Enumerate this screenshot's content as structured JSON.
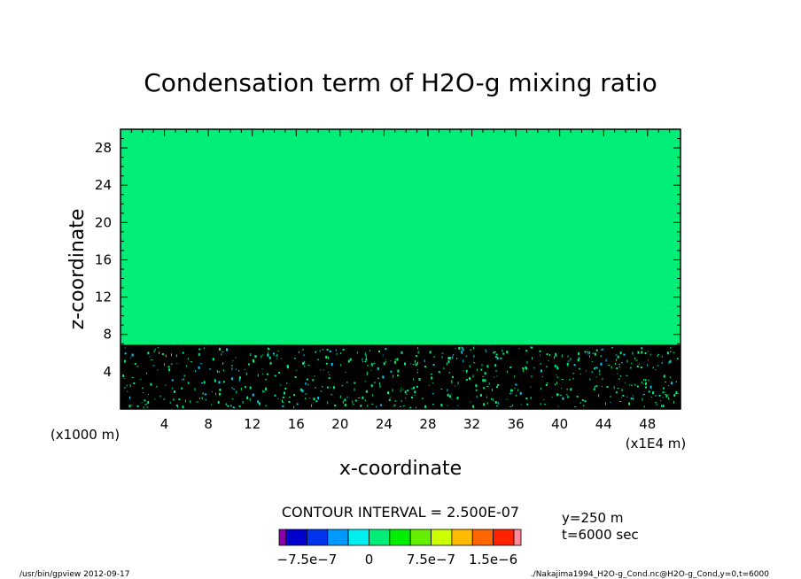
{
  "chart_data": {
    "type": "heatmap",
    "title": "Condensation term of H2O-g mixing ratio",
    "xlabel": "x-coordinate",
    "ylabel": "z-coordinate",
    "x_unit_note": "(x1E4 m)",
    "y_unit_note": "(x1000 m)",
    "xlim": [
      0,
      51
    ],
    "ylim": [
      0,
      30
    ],
    "x_ticks": [
      4,
      8,
      12,
      16,
      20,
      24,
      28,
      32,
      36,
      40,
      44,
      48
    ],
    "y_ticks": [
      4,
      8,
      12,
      16,
      20,
      24,
      28
    ],
    "field": {
      "upper_region": {
        "z_range": [
          6.9,
          30
        ],
        "value_class": "0 to 2.5e-7",
        "color": "#00ee78"
      },
      "lower_region": {
        "z_range": [
          0,
          6.9
        ],
        "value_class": "below -7.5e-7 (dominant)",
        "color": "#000000",
        "speckle_colors": [
          "#00ee78",
          "#00ccff"
        ]
      }
    },
    "contour_interval": "CONTOUR INTERVAL = 2.500E-07",
    "colorbar": {
      "colors": [
        "#8800aa",
        "#0000cc",
        "#0033ee",
        "#0099ff",
        "#00eeee",
        "#00ee78",
        "#00ee00",
        "#66ee00",
        "#ccff00",
        "#ffbb00",
        "#ff6600",
        "#ff2200",
        "#ff8899"
      ],
      "tick_labels": [
        "−7.5e−7",
        "0",
        "7.5e−7",
        "1.5e−6"
      ]
    }
  },
  "info": {
    "y_position": "y=250 m",
    "time": "t=6000 sec"
  },
  "footer": {
    "left": "/usr/bin/gpview   2012-09-17",
    "right": "./Nakajima1994_H2O-g_Cond.nc@H2O-g_Cond,y=0,t=6000"
  }
}
